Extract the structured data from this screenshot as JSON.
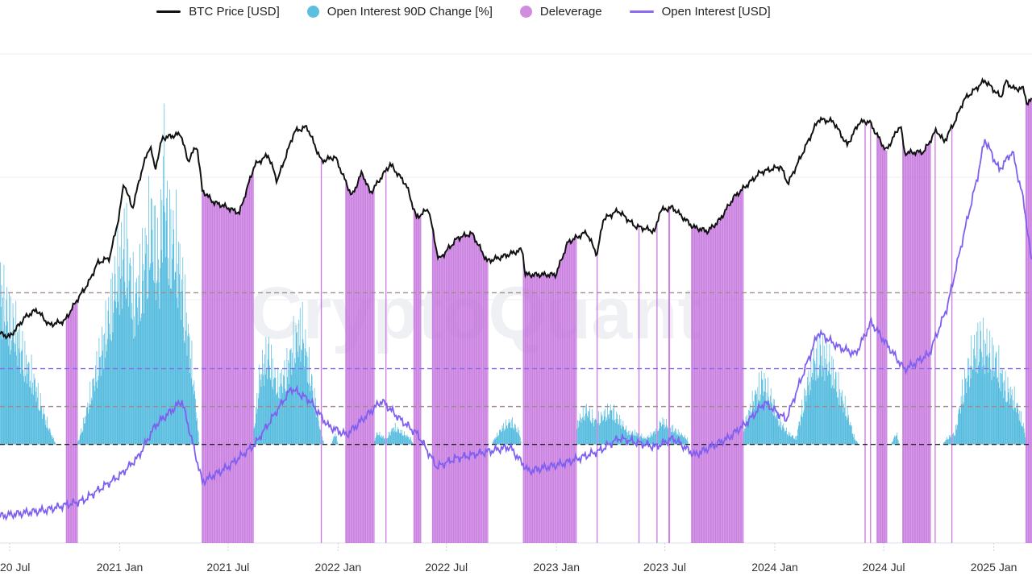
{
  "chart_data": {
    "type": "bar+line",
    "watermark": "CryptoQuant",
    "legend": [
      {
        "label": "BTC Price [USD]",
        "kind": "line",
        "color": "#111111"
      },
      {
        "label": "Open Interest 90D Change [%]",
        "kind": "dot",
        "color": "#5bbfe0"
      },
      {
        "label": "Deleverage",
        "kind": "dot",
        "color": "#d08de0"
      },
      {
        "label": "Open Interest [USD]",
        "kind": "line",
        "color": "#8a6cf0"
      }
    ],
    "legend_placement": "top-center",
    "x_range": [
      "2020-06-15",
      "2025-03-06"
    ],
    "x_ticks": [
      {
        "date": "2020-07-01",
        "label": "20 Jul"
      },
      {
        "date": "2021-01-01",
        "label": "2021 Jan"
      },
      {
        "date": "2021-07-01",
        "label": "2021 Jul"
      },
      {
        "date": "2022-01-01",
        "label": "2022 Jan"
      },
      {
        "date": "2022-07-01",
        "label": "2022 Jul"
      },
      {
        "date": "2023-01-01",
        "label": "2023 Jan"
      },
      {
        "date": "2023-07-01",
        "label": "2023 Jul"
      },
      {
        "date": "2024-01-01",
        "label": "2024 Jan"
      },
      {
        "date": "2024-07-01",
        "label": "2024 Jul"
      },
      {
        "date": "2025-01-01",
        "label": "2025 Jan"
      }
    ],
    "price_axis": {
      "scale": "log",
      "ylim": [
        1266,
        135500
      ]
    },
    "oi_change_axis": {
      "scale": "linear",
      "ylim": [
        -65,
        257
      ]
    },
    "oi_axis": {
      "scale": "linear",
      "ylim_billion_usd": [
        -0.8,
        77.5
      ]
    },
    "reference_lines_oi_change_pct": [
      {
        "value": 0,
        "color": "#222222"
      },
      {
        "value": 25,
        "color": "#a08a8a"
      },
      {
        "value": 50,
        "color": "#8a6cf0"
      },
      {
        "value": 100,
        "color": "#a08a8a"
      }
    ],
    "btc_price": [
      [
        "2020-06-15",
        9400
      ],
      [
        "2020-07-01",
        9100
      ],
      [
        "2020-07-27",
        11000
      ],
      [
        "2020-08-15",
        11800
      ],
      [
        "2020-09-05",
        10200
      ],
      [
        "2020-10-01",
        10600
      ],
      [
        "2020-10-21",
        12900
      ],
      [
        "2020-11-10",
        15300
      ],
      [
        "2020-11-25",
        18500
      ],
      [
        "2020-12-15",
        19400
      ],
      [
        "2020-12-31",
        29000
      ],
      [
        "2021-01-08",
        40000
      ],
      [
        "2021-01-22",
        31000
      ],
      [
        "2021-02-08",
        46000
      ],
      [
        "2021-02-21",
        57000
      ],
      [
        "2021-03-01",
        45000
      ],
      [
        "2021-03-13",
        61000
      ],
      [
        "2021-04-13",
        63500
      ],
      [
        "2021-04-25",
        49000
      ],
      [
        "2021-05-10",
        57000
      ],
      [
        "2021-05-19",
        37000
      ],
      [
        "2021-06-07",
        33000
      ],
      [
        "2021-06-22",
        32000
      ],
      [
        "2021-07-20",
        29800
      ],
      [
        "2021-08-14",
        47000
      ],
      [
        "2021-09-06",
        52000
      ],
      [
        "2021-09-21",
        40500
      ],
      [
        "2021-10-20",
        65000
      ],
      [
        "2021-11-10",
        68000
      ],
      [
        "2021-12-04",
        49000
      ],
      [
        "2021-12-27",
        51000
      ],
      [
        "2022-01-24",
        35000
      ],
      [
        "2022-02-10",
        44000
      ],
      [
        "2022-02-24",
        36000
      ],
      [
        "2022-03-29",
        47500
      ],
      [
        "2022-04-25",
        39000
      ],
      [
        "2022-05-12",
        28500
      ],
      [
        "2022-06-01",
        31000
      ],
      [
        "2022-06-18",
        19000
      ],
      [
        "2022-07-20",
        23500
      ],
      [
        "2022-08-13",
        24500
      ],
      [
        "2022-09-07",
        18800
      ],
      [
        "2022-09-30",
        19500
      ],
      [
        "2022-11-05",
        21000
      ],
      [
        "2022-11-10",
        16500
      ],
      [
        "2022-12-31",
        16500
      ],
      [
        "2023-01-20",
        22500
      ],
      [
        "2023-02-20",
        24800
      ],
      [
        "2023-03-10",
        20000
      ],
      [
        "2023-03-20",
        28000
      ],
      [
        "2023-04-14",
        30500
      ],
      [
        "2023-05-12",
        26300
      ],
      [
        "2023-06-15",
        25000
      ],
      [
        "2023-06-23",
        30500
      ],
      [
        "2023-07-14",
        31400
      ],
      [
        "2023-08-17",
        26100
      ],
      [
        "2023-09-11",
        25000
      ],
      [
        "2023-10-01",
        27900
      ],
      [
        "2023-10-24",
        34500
      ],
      [
        "2023-12-08",
        44000
      ],
      [
        "2024-01-11",
        46500
      ],
      [
        "2024-01-23",
        39500
      ],
      [
        "2024-02-15",
        52000
      ],
      [
        "2024-03-14",
        73000
      ],
      [
        "2024-04-08",
        71500
      ],
      [
        "2024-05-01",
        57000
      ],
      [
        "2024-05-21",
        71000
      ],
      [
        "2024-06-07",
        71500
      ],
      [
        "2024-07-05",
        54000
      ],
      [
        "2024-07-29",
        69500
      ],
      [
        "2024-08-05",
        53000
      ],
      [
        "2024-09-06",
        53500
      ],
      [
        "2024-09-27",
        66000
      ],
      [
        "2024-10-10",
        59000
      ],
      [
        "2024-10-29",
        72500
      ],
      [
        "2024-11-12",
        88000
      ],
      [
        "2024-12-17",
        106000
      ],
      [
        "2025-01-13",
        90000
      ],
      [
        "2025-01-21",
        105000
      ],
      [
        "2025-02-03",
        98000
      ],
      [
        "2025-02-20",
        98000
      ],
      [
        "2025-02-26",
        84000
      ],
      [
        "2025-03-06",
        89000
      ]
    ],
    "open_interest_billion_usd": [
      [
        "2020-06-15",
        3.5
      ],
      [
        "2020-09-01",
        4.5
      ],
      [
        "2020-11-01",
        6
      ],
      [
        "2020-12-01",
        8
      ],
      [
        "2021-01-01",
        10
      ],
      [
        "2021-02-01",
        13
      ],
      [
        "2021-03-01",
        18
      ],
      [
        "2021-04-15",
        22
      ],
      [
        "2021-05-19",
        9
      ],
      [
        "2021-07-01",
        11.4
      ],
      [
        "2021-08-15",
        15
      ],
      [
        "2021-10-15",
        24
      ],
      [
        "2021-11-15",
        22
      ],
      [
        "2021-12-15",
        18
      ],
      [
        "2022-01-15",
        16.5
      ],
      [
        "2022-03-15",
        22
      ],
      [
        "2022-04-15",
        19
      ],
      [
        "2022-05-15",
        16.5
      ],
      [
        "2022-06-15",
        11.4
      ],
      [
        "2022-07-15",
        12.7
      ],
      [
        "2022-09-15",
        14
      ],
      [
        "2022-10-15",
        14.6
      ],
      [
        "2022-11-15",
        10.7
      ],
      [
        "2023-01-15",
        12
      ],
      [
        "2023-03-15",
        14
      ],
      [
        "2023-04-15",
        16
      ],
      [
        "2023-06-15",
        14.6
      ],
      [
        "2023-07-15",
        16
      ],
      [
        "2023-08-20",
        13.3
      ],
      [
        "2023-10-15",
        16
      ],
      [
        "2023-11-15",
        18.5
      ],
      [
        "2023-12-15",
        21.7
      ],
      [
        "2024-01-20",
        19
      ],
      [
        "2024-03-14",
        33
      ],
      [
        "2024-04-15",
        30.7
      ],
      [
        "2024-05-15",
        29.5
      ],
      [
        "2024-06-10",
        34.6
      ],
      [
        "2024-08-05",
        27
      ],
      [
        "2024-09-15",
        29.5
      ],
      [
        "2024-10-15",
        37
      ],
      [
        "2024-11-15",
        50
      ],
      [
        "2024-12-05",
        58
      ],
      [
        "2024-12-17",
        64
      ],
      [
        "2025-01-10",
        59
      ],
      [
        "2025-02-01",
        62
      ],
      [
        "2025-02-20",
        54
      ],
      [
        "2025-03-06",
        43.6
      ]
    ],
    "open_interest_90d_change_pct": [
      [
        "2020-06-15",
        130
      ],
      [
        "2020-06-29",
        110
      ],
      [
        "2020-07-13",
        95
      ],
      [
        "2020-07-27",
        70
      ],
      [
        "2020-08-10",
        55
      ],
      [
        "2020-08-24",
        30
      ],
      [
        "2020-09-07",
        10
      ],
      [
        "2020-09-21",
        -5
      ],
      [
        "2020-10-05",
        -10
      ],
      [
        "2020-10-19",
        -5
      ],
      [
        "2020-11-02",
        20
      ],
      [
        "2020-11-16",
        50
      ],
      [
        "2020-11-30",
        80
      ],
      [
        "2020-12-14",
        110
      ],
      [
        "2020-12-28",
        150
      ],
      [
        "2021-01-11",
        170
      ],
      [
        "2021-01-25",
        120
      ],
      [
        "2021-02-08",
        150
      ],
      [
        "2021-02-22",
        190
      ],
      [
        "2021-03-08",
        150
      ],
      [
        "2021-03-15",
        245
      ],
      [
        "2021-03-22",
        180
      ],
      [
        "2021-04-05",
        170
      ],
      [
        "2021-04-19",
        120
      ],
      [
        "2021-05-03",
        60
      ],
      [
        "2021-05-17",
        -20
      ],
      [
        "2021-05-31",
        -40
      ],
      [
        "2021-06-14",
        -45
      ],
      [
        "2021-06-28",
        -35
      ],
      [
        "2021-07-12",
        -30
      ],
      [
        "2021-07-26",
        -10
      ],
      [
        "2021-08-09",
        -5
      ],
      [
        "2021-08-23",
        60
      ],
      [
        "2021-09-06",
        80
      ],
      [
        "2021-09-20",
        50
      ],
      [
        "2021-10-04",
        60
      ],
      [
        "2021-10-18",
        85
      ],
      [
        "2021-11-01",
        100
      ],
      [
        "2021-11-15",
        60
      ],
      [
        "2021-11-29",
        20
      ],
      [
        "2021-12-13",
        -10
      ],
      [
        "2021-12-27",
        10
      ],
      [
        "2022-01-10",
        -20
      ],
      [
        "2022-01-24",
        -40
      ],
      [
        "2022-02-07",
        -20
      ],
      [
        "2022-02-21",
        -10
      ],
      [
        "2022-03-07",
        10
      ],
      [
        "2022-03-21",
        5
      ],
      [
        "2022-04-04",
        15
      ],
      [
        "2022-04-18",
        10
      ],
      [
        "2022-05-02",
        5
      ],
      [
        "2022-05-16",
        -10
      ],
      [
        "2022-05-30",
        -5
      ],
      [
        "2022-06-13",
        -30
      ],
      [
        "2022-06-27",
        -35
      ],
      [
        "2022-07-11",
        -25
      ],
      [
        "2022-07-25",
        -15
      ],
      [
        "2022-08-08",
        -10
      ],
      [
        "2022-08-22",
        -5
      ],
      [
        "2022-09-05",
        -10
      ],
      [
        "2022-09-19",
        5
      ],
      [
        "2022-10-03",
        15
      ],
      [
        "2022-10-17",
        20
      ],
      [
        "2022-10-31",
        10
      ],
      [
        "2022-11-14",
        -40
      ],
      [
        "2022-11-28",
        -40
      ],
      [
        "2022-12-12",
        -30
      ],
      [
        "2022-12-26",
        -20
      ],
      [
        "2023-01-09",
        -10
      ],
      [
        "2023-01-23",
        5
      ],
      [
        "2023-02-06",
        20
      ],
      [
        "2023-02-20",
        30
      ],
      [
        "2023-03-06",
        20
      ],
      [
        "2023-03-20",
        25
      ],
      [
        "2023-04-03",
        30
      ],
      [
        "2023-04-17",
        20
      ],
      [
        "2023-05-01",
        10
      ],
      [
        "2023-05-15",
        10
      ],
      [
        "2023-05-29",
        5
      ],
      [
        "2023-06-12",
        10
      ],
      [
        "2023-06-26",
        20
      ],
      [
        "2023-07-10",
        15
      ],
      [
        "2023-07-24",
        10
      ],
      [
        "2023-08-07",
        5
      ],
      [
        "2023-08-21",
        -25
      ],
      [
        "2023-09-04",
        -30
      ],
      [
        "2023-09-18",
        -20
      ],
      [
        "2023-10-02",
        -15
      ],
      [
        "2023-10-16",
        -5
      ],
      [
        "2023-10-30",
        -5
      ],
      [
        "2023-11-13",
        20
      ],
      [
        "2023-11-27",
        40
      ],
      [
        "2023-12-11",
        55
      ],
      [
        "2023-12-25",
        40
      ],
      [
        "2024-01-08",
        20
      ],
      [
        "2024-01-22",
        10
      ],
      [
        "2024-02-05",
        5
      ],
      [
        "2024-02-19",
        40
      ],
      [
        "2024-03-04",
        70
      ],
      [
        "2024-03-18",
        80
      ],
      [
        "2024-04-01",
        70
      ],
      [
        "2024-04-15",
        50
      ],
      [
        "2024-04-29",
        30
      ],
      [
        "2024-05-13",
        5
      ],
      [
        "2024-05-27",
        -5
      ],
      [
        "2024-06-10",
        0
      ],
      [
        "2024-06-24",
        -10
      ],
      [
        "2024-07-08",
        -5
      ],
      [
        "2024-07-22",
        10
      ],
      [
        "2024-08-05",
        -20
      ],
      [
        "2024-08-19",
        -25
      ],
      [
        "2024-09-02",
        -20
      ],
      [
        "2024-09-16",
        -10
      ],
      [
        "2024-09-30",
        -5
      ],
      [
        "2024-10-14",
        5
      ],
      [
        "2024-10-28",
        10
      ],
      [
        "2024-11-11",
        50
      ],
      [
        "2024-11-25",
        75
      ],
      [
        "2024-12-09",
        90
      ],
      [
        "2024-12-23",
        80
      ],
      [
        "2025-01-06",
        70
      ],
      [
        "2025-01-20",
        50
      ],
      [
        "2025-02-03",
        40
      ],
      [
        "2025-02-17",
        20
      ],
      [
        "2025-03-06",
        -20
      ]
    ],
    "deleverage_periods": [
      [
        "2020-10-03",
        "2020-10-22"
      ],
      [
        "2021-05-18",
        "2021-08-12"
      ],
      [
        "2021-12-03",
        "2021-12-04"
      ],
      [
        "2022-01-13",
        "2022-03-02"
      ],
      [
        "2022-03-21",
        "2022-03-22"
      ],
      [
        "2022-05-07",
        "2022-05-19"
      ],
      [
        "2022-06-07",
        "2022-09-08"
      ],
      [
        "2022-11-06",
        "2023-02-03"
      ],
      [
        "2023-03-09",
        "2023-03-10"
      ],
      [
        "2023-05-18",
        "2023-05-19"
      ],
      [
        "2023-06-17",
        "2023-06-18"
      ],
      [
        "2023-07-07",
        "2023-07-09"
      ],
      [
        "2023-08-14",
        "2023-11-09"
      ],
      [
        "2024-05-30",
        "2024-05-31"
      ],
      [
        "2024-06-08",
        "2024-06-09"
      ],
      [
        "2024-06-19",
        "2024-07-06"
      ],
      [
        "2024-08-01",
        "2024-09-17"
      ],
      [
        "2024-09-24",
        "2024-09-25"
      ],
      [
        "2024-10-22",
        "2024-10-23"
      ],
      [
        "2025-02-23",
        "2025-03-06"
      ]
    ]
  }
}
